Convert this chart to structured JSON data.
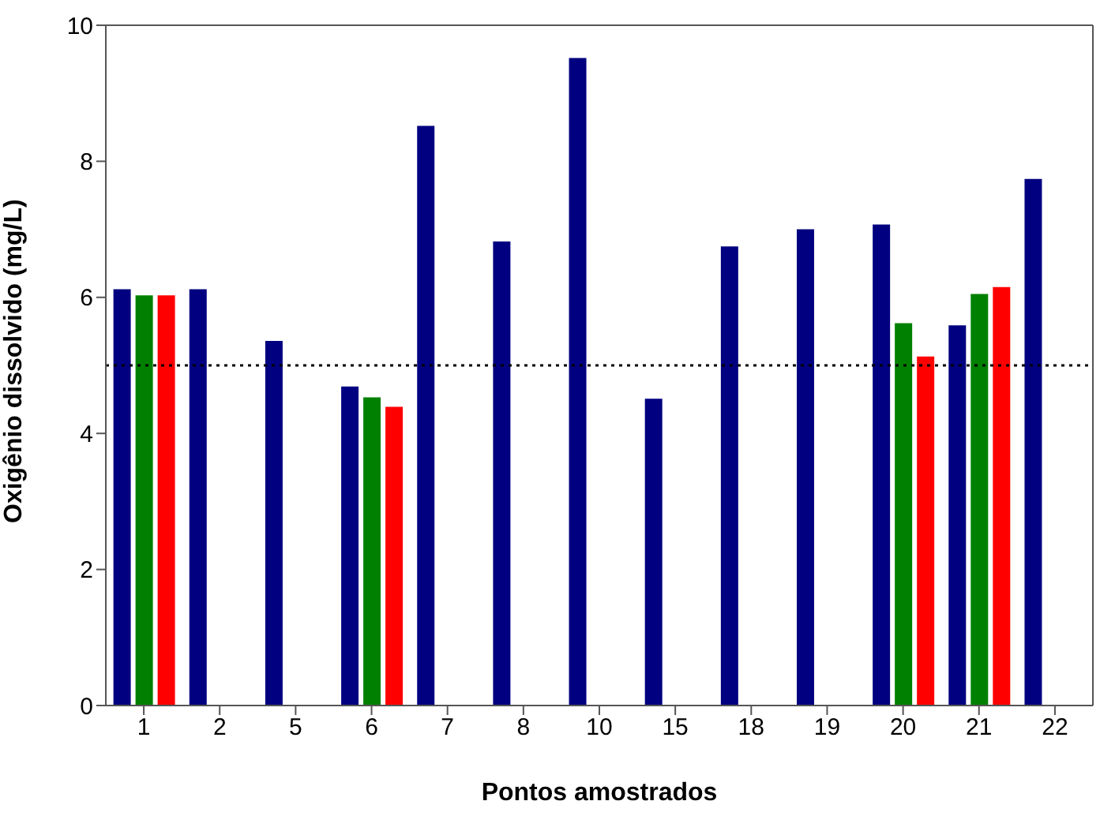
{
  "chart_data": {
    "type": "bar",
    "xlabel": "Pontos amostrados",
    "ylabel": "Oxigênio dissolvido (mg/L)",
    "categories": [
      "1",
      "2",
      "5",
      "6",
      "7",
      "8",
      "10",
      "15",
      "18",
      "19",
      "20",
      "21",
      "22"
    ],
    "series": [
      {
        "color": "#000080",
        "values": [
          6.12,
          6.12,
          5.36,
          4.69,
          8.52,
          6.82,
          9.52,
          4.51,
          6.75,
          7.0,
          7.07,
          5.59,
          7.74
        ]
      },
      {
        "color": "#008000",
        "values": [
          6.03,
          null,
          null,
          4.53,
          null,
          null,
          null,
          null,
          null,
          null,
          5.62,
          6.05,
          null
        ]
      },
      {
        "color": "#ff0000",
        "values": [
          6.03,
          null,
          null,
          4.39,
          null,
          null,
          null,
          null,
          null,
          null,
          5.13,
          6.15,
          null
        ]
      }
    ],
    "ylim": [
      0,
      10
    ],
    "yticks": [
      0,
      2,
      4,
      6,
      8,
      10
    ],
    "grid": false,
    "legend": false,
    "ref_lines": [
      {
        "axis": "y",
        "value": 5,
        "color": "#000000",
        "line_style": "dotted"
      }
    ]
  }
}
